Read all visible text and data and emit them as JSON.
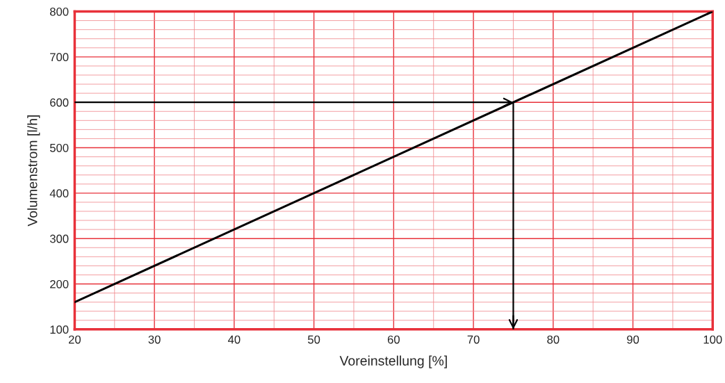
{
  "chart_data": {
    "type": "line",
    "xlabel": "Voreinstellung [%]",
    "ylabel": "Volumenstrom [l/h]",
    "series": [
      {
        "color": "#000000",
        "x": [
          20,
          100
        ],
        "values": [
          160,
          800
        ]
      },
      {
        "color": "#000000",
        "x": [
          20,
          75,
          75
        ],
        "values": [
          600,
          600,
          100
        ]
      }
    ],
    "xlim": [
      20,
      100
    ],
    "ylim": [
      100,
      800
    ],
    "xticks": [
      20,
      {
        "value": 25,
        "label": null
      },
      30,
      {
        "value": 35,
        "label": null
      },
      40,
      {
        "value": 45,
        "label": null
      },
      50,
      {
        "value": 55,
        "label": null
      },
      60,
      {
        "value": 65,
        "label": null
      },
      70,
      {
        "value": 75,
        "label": null
      },
      80,
      {
        "value": 85,
        "label": null
      },
      90,
      {
        "value": 95,
        "label": null
      },
      100
    ],
    "yticks": [
      100,
      {
        "value": 120,
        "label": null
      },
      {
        "value": 140,
        "label": null
      },
      {
        "value": 160,
        "label": null
      },
      {
        "value": 180,
        "label": null
      },
      200,
      {
        "value": 220,
        "label": null
      },
      {
        "value": 240,
        "label": null
      },
      {
        "value": 260,
        "label": null
      },
      {
        "value": 280,
        "label": null
      },
      300,
      {
        "value": 320,
        "label": null
      },
      {
        "value": 340,
        "label": null
      },
      {
        "value": 360,
        "label": null
      },
      {
        "value": 380,
        "label": null
      },
      400,
      {
        "value": 420,
        "label": null
      },
      {
        "value": 440,
        "label": null
      },
      {
        "value": 460,
        "label": null
      },
      {
        "value": 480,
        "label": null
      },
      500,
      {
        "value": 520,
        "label": null
      },
      {
        "value": 540,
        "label": null
      },
      {
        "value": 560,
        "label": null
      },
      {
        "value": 580,
        "label": null
      },
      600,
      {
        "value": 620,
        "label": null
      },
      {
        "value": 640,
        "label": null
      },
      {
        "value": 660,
        "label": null
      },
      {
        "value": 680,
        "label": null
      },
      700,
      {
        "value": 720,
        "label": null
      },
      {
        "value": 740,
        "label": null
      },
      {
        "value": 760,
        "label": null
      },
      {
        "value": 780,
        "label": null
      },
      800
    ],
    "grid": true,
    "marker": "none",
    "line_style": "solid"
  }
}
